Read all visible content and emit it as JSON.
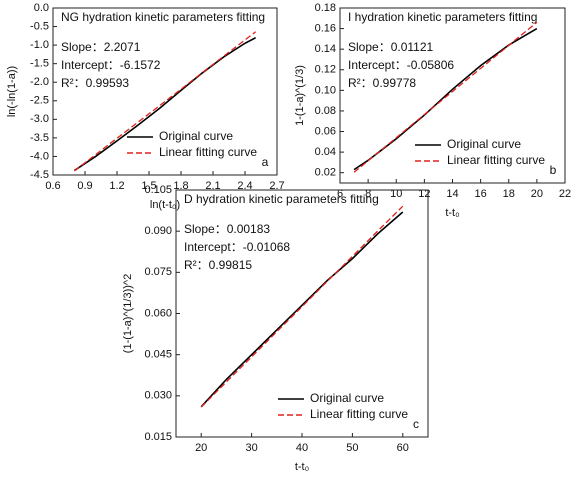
{
  "chart_data": [
    {
      "type": "line",
      "title": "NG hydration kinetic parameters fitting",
      "annotations": [
        "Slope：2.2071",
        "Intercept：-6.1572",
        "R²：0.99593"
      ],
      "panel_label": "a",
      "xlabel": "ln(t-t₀)",
      "ylabel": "ln(-ln(1-a))",
      "x": [
        0.8,
        1.0,
        1.2,
        1.4,
        1.6,
        1.8,
        2.0,
        2.2,
        2.4,
        2.5
      ],
      "series": [
        {
          "name": "Original curve",
          "color": "#000000",
          "line_style": "solid",
          "values": [
            -4.38,
            -4.0,
            -3.58,
            -3.15,
            -2.7,
            -2.22,
            -1.75,
            -1.32,
            -0.95,
            -0.8
          ]
        },
        {
          "name": "Linear fitting curve",
          "color": "#e0201b",
          "line_style": "dashed",
          "values": [
            -4.39,
            -3.95,
            -3.51,
            -3.07,
            -2.63,
            -2.19,
            -1.74,
            -1.3,
            -0.86,
            -0.64
          ]
        }
      ],
      "xlim": [
        0.6,
        2.7
      ],
      "xticks": [
        0.6,
        0.9,
        1.2,
        1.5,
        1.8,
        2.1,
        2.4,
        2.7
      ],
      "ylim": [
        -4.5,
        0
      ],
      "yticks": [
        -4.5,
        {
          "value": -4,
          "label": "-4.0"
        },
        -3.5,
        {
          "value": -3,
          "label": "-3.0"
        },
        -2.5,
        {
          "value": -2,
          "label": "-2.0"
        },
        -1.5,
        {
          "value": -1,
          "label": "-1.0"
        },
        -0.5,
        {
          "value": 0,
          "label": "0.0"
        }
      ],
      "legend": "lower right"
    },
    {
      "type": "line",
      "title": "I hydration kinetic parameters fitting",
      "annotations": [
        "Slope：0.01121",
        "Intercept：-0.05806",
        "R²：0.99778"
      ],
      "panel_label": "b",
      "xlabel": "t-t₀",
      "ylabel": "1-(1-a)^(1/3)",
      "x": [
        7,
        8,
        10,
        12,
        14,
        16,
        18,
        20
      ],
      "series": [
        {
          "name": "Original curve",
          "color": "#000000",
          "line_style": "solid",
          "values": [
            0.023,
            0.032,
            0.053,
            0.076,
            0.101,
            0.124,
            0.144,
            0.16
          ]
        },
        {
          "name": "Linear fitting curve",
          "color": "#e0201b",
          "line_style": "dashed",
          "values": [
            0.0204,
            0.0316,
            0.054,
            0.0765,
            0.0989,
            0.1213,
            0.1437,
            0.1661
          ]
        }
      ],
      "xlim": [
        6,
        22
      ],
      "xticks": [
        6,
        8,
        10,
        12,
        14,
        16,
        18,
        20,
        22
      ],
      "ylim": [
        0.01,
        0.18
      ],
      "yticks": [
        0.02,
        0.04,
        0.06,
        0.08,
        {
          "value": 0.1,
          "label": "0.10"
        },
        0.12,
        0.14,
        0.16,
        0.18
      ],
      "legend": "lower right"
    },
    {
      "type": "line",
      "title": "D hydration kinetic parameters fitting",
      "annotations": [
        "Slope：0.00183",
        "Intercept：-0.01068",
        "R²：0.99815"
      ],
      "panel_label": "c",
      "xlabel": "t-t₀",
      "ylabel": "(1-(1-a)^(1/3))^2",
      "x": [
        20,
        25,
        30,
        35,
        40,
        45,
        50,
        55,
        60
      ],
      "series": [
        {
          "name": "Original curve",
          "color": "#000000",
          "line_style": "solid",
          "values": [
            0.026,
            0.036,
            0.045,
            0.054,
            0.063,
            0.072,
            0.08,
            0.089,
            0.097
          ]
        },
        {
          "name": "Linear fitting curve",
          "color": "#e0201b",
          "line_style": "dashed",
          "values": [
            0.0259,
            0.0351,
            0.0442,
            0.0534,
            0.0625,
            0.0717,
            0.0808,
            0.09,
            0.0991
          ]
        }
      ],
      "xlim": [
        15,
        65
      ],
      "xticks": [
        20,
        30,
        40,
        50,
        60
      ],
      "ylim": [
        0.015,
        0.105
      ],
      "yticks": [
        0.015,
        {
          "value": 0.03,
          "label": "0.030"
        },
        0.045,
        {
          "value": 0.06,
          "label": "0.060"
        },
        0.075,
        {
          "value": 0.09,
          "label": "0.090"
        },
        0.105
      ],
      "legend": "lower right"
    }
  ]
}
